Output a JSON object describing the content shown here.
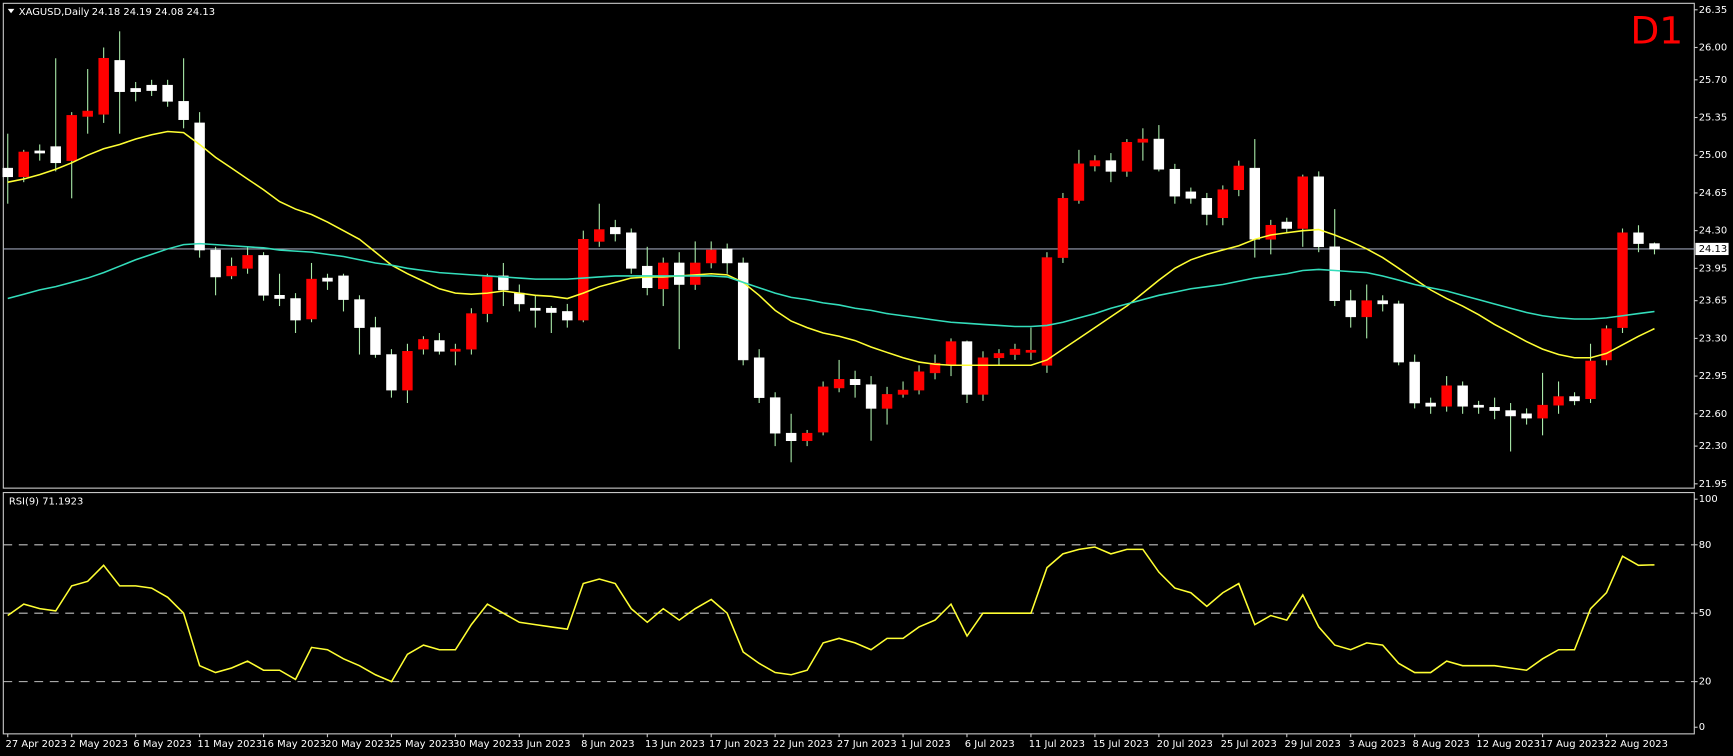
{
  "chart_data": [
    {
      "type": "candlestick",
      "title": "XAGUSD,Daily",
      "header_values": "24.18 24.19 24.08 24.13",
      "timeframe": "D1",
      "categories": [
        "27 Apr 2023",
        null,
        null,
        null,
        "2 May 2023",
        null,
        null,
        null,
        "6 May 2023",
        null,
        null,
        null,
        "11 May 2023",
        null,
        null,
        null,
        "16 May 2023",
        null,
        null,
        null,
        "20 May 2023",
        null,
        null,
        null,
        "25 May 2023",
        null,
        null,
        null,
        "30 May 2023",
        null,
        null,
        null,
        "3 Jun 2023",
        null,
        null,
        null,
        "8 Jun 2023",
        null,
        null,
        null,
        "13 Jun 2023",
        null,
        null,
        null,
        "17 Jun 2023",
        null,
        null,
        null,
        "22 Jun 2023",
        null,
        null,
        null,
        "27 Jun 2023",
        null,
        null,
        null,
        "1 Jul 2023",
        null,
        null,
        null,
        "6 Jul 2023",
        null,
        null,
        null,
        "11 Jul 2023",
        null,
        null,
        null,
        "15 Jul 2023",
        null,
        null,
        null,
        "20 Jul 2023",
        null,
        null,
        null,
        "25 Jul 2023",
        null,
        null,
        null,
        "29 Jul 2023",
        null,
        null,
        null,
        "3 Aug 2023",
        null,
        null,
        null,
        "8 Aug 2023",
        null,
        null,
        null,
        "12 Aug 2023",
        null,
        null,
        null,
        "17 Aug 2023",
        null,
        null,
        null,
        "22 Aug 2023",
        null,
        null,
        null
      ],
      "open": [
        24.88,
        24.8,
        25.04,
        25.08,
        24.95,
        25.36,
        25.38,
        25.88,
        25.62,
        25.65,
        25.65,
        25.5,
        25.3,
        24.12,
        23.88,
        23.95,
        24.07,
        23.7,
        23.67,
        23.48,
        23.86,
        23.88,
        23.66,
        23.4,
        23.15,
        22.82,
        23.2,
        23.28,
        23.18,
        23.2,
        23.53,
        23.88,
        23.72,
        23.58,
        23.58,
        23.55,
        23.47,
        24.2,
        24.33,
        24.28,
        23.97,
        23.76,
        24.0,
        23.8,
        24.0,
        24.13,
        24.0,
        23.12,
        22.75,
        22.42,
        22.35,
        22.43,
        22.84,
        22.92,
        22.87,
        22.65,
        22.78,
        22.82,
        22.98,
        23.05,
        23.27,
        22.78,
        23.12,
        23.15,
        23.17,
        23.05,
        24.05,
        24.58,
        24.9,
        24.95,
        24.85,
        25.12,
        25.15,
        24.87,
        24.66,
        24.6,
        24.42,
        24.68,
        24.88,
        24.22,
        24.38,
        24.32,
        24.8,
        24.15,
        23.65,
        23.5,
        23.65,
        23.62,
        23.08,
        22.7,
        22.67,
        22.86,
        22.68,
        22.66,
        22.63,
        22.6,
        22.56,
        22.68,
        22.76,
        22.74,
        23.1,
        23.4,
        24.28,
        24.18
      ],
      "high": [
        25.2,
        25.05,
        25.1,
        25.9,
        25.4,
        25.8,
        26.0,
        26.15,
        25.68,
        25.7,
        25.7,
        25.9,
        25.4,
        24.15,
        24.05,
        24.15,
        24.1,
        23.9,
        23.72,
        24.0,
        23.9,
        23.9,
        23.7,
        23.5,
        23.2,
        23.25,
        23.32,
        23.35,
        23.25,
        23.58,
        23.9,
        24.0,
        23.8,
        23.7,
        23.6,
        23.62,
        24.3,
        24.55,
        24.4,
        24.32,
        24.15,
        24.05,
        24.1,
        24.2,
        24.2,
        24.18,
        24.05,
        23.2,
        22.8,
        22.6,
        22.45,
        22.9,
        23.1,
        23.0,
        22.95,
        22.85,
        22.9,
        23.05,
        23.15,
        23.3,
        23.28,
        23.18,
        23.2,
        23.25,
        23.4,
        24.1,
        24.65,
        25.05,
        25.0,
        25.02,
        25.15,
        25.25,
        25.28,
        24.92,
        24.7,
        24.65,
        24.72,
        24.95,
        25.15,
        24.4,
        24.42,
        24.82,
        24.85,
        24.5,
        23.75,
        23.8,
        23.7,
        23.65,
        23.15,
        22.75,
        22.95,
        22.9,
        22.72,
        22.75,
        22.7,
        22.65,
        22.98,
        22.9,
        22.8,
        23.25,
        23.42,
        24.32,
        24.35,
        24.19
      ],
      "low": [
        24.55,
        24.75,
        24.95,
        24.85,
        24.6,
        25.2,
        25.3,
        25.2,
        25.5,
        25.55,
        25.45,
        25.25,
        24.05,
        23.7,
        23.85,
        23.9,
        23.65,
        23.6,
        23.35,
        23.45,
        23.75,
        23.55,
        23.15,
        23.12,
        22.75,
        22.7,
        23.15,
        23.15,
        23.05,
        23.15,
        23.45,
        23.6,
        23.55,
        23.4,
        23.35,
        23.4,
        23.45,
        24.15,
        24.2,
        23.9,
        23.7,
        23.6,
        23.2,
        23.75,
        23.95,
        23.9,
        23.05,
        22.7,
        22.3,
        22.15,
        22.3,
        22.4,
        22.8,
        22.75,
        22.35,
        22.5,
        22.75,
        22.78,
        22.92,
        22.95,
        22.7,
        22.72,
        23.05,
        23.1,
        23.1,
        22.98,
        24.0,
        24.55,
        24.85,
        24.75,
        24.8,
        24.95,
        24.85,
        24.55,
        24.55,
        24.35,
        24.35,
        24.62,
        24.05,
        24.08,
        24.28,
        24.15,
        24.1,
        23.6,
        23.4,
        23.3,
        23.55,
        23.05,
        22.65,
        22.6,
        22.62,
        22.6,
        22.6,
        22.55,
        22.25,
        22.5,
        22.4,
        22.6,
        22.68,
        22.7,
        23.05,
        23.35,
        24.1,
        24.08
      ],
      "close": [
        24.8,
        25.03,
        25.02,
        24.93,
        25.37,
        25.41,
        25.9,
        25.59,
        25.59,
        25.6,
        25.5,
        25.33,
        24.12,
        23.87,
        23.97,
        24.07,
        23.7,
        23.67,
        23.47,
        23.85,
        23.83,
        23.66,
        23.4,
        23.15,
        22.82,
        23.18,
        23.29,
        23.18,
        23.2,
        23.53,
        23.87,
        23.75,
        23.62,
        23.56,
        23.54,
        23.47,
        24.22,
        24.31,
        24.27,
        23.95,
        23.77,
        24.0,
        23.8,
        24.0,
        24.12,
        24.0,
        23.1,
        22.75,
        22.42,
        22.35,
        22.42,
        22.85,
        22.92,
        22.87,
        22.65,
        22.78,
        22.82,
        22.99,
        23.07,
        23.27,
        22.78,
        23.12,
        23.16,
        23.2,
        23.19,
        24.05,
        24.6,
        24.92,
        24.95,
        24.85,
        25.12,
        25.15,
        24.87,
        24.62,
        24.6,
        24.45,
        24.68,
        24.9,
        24.22,
        24.35,
        24.32,
        24.8,
        24.15,
        23.65,
        23.5,
        23.65,
        23.62,
        23.08,
        22.7,
        22.67,
        22.86,
        22.67,
        22.66,
        22.63,
        22.58,
        22.56,
        22.68,
        22.76,
        22.72,
        23.09,
        23.39,
        24.28,
        24.18,
        24.13
      ],
      "up_color": "#ff0000",
      "down_color": "#ffffff",
      "wick_color": "#a8e8a8",
      "lines": [
        {
          "color": "#ffff33",
          "values": [
            24.75,
            24.78,
            24.82,
            24.87,
            24.93,
            25.0,
            25.06,
            25.1,
            25.15,
            25.19,
            25.22,
            25.21,
            25.1,
            24.98,
            24.88,
            24.78,
            24.68,
            24.57,
            24.5,
            24.45,
            24.38,
            24.3,
            24.22,
            24.1,
            23.98,
            23.9,
            23.83,
            23.76,
            23.72,
            23.71,
            23.72,
            23.74,
            23.72,
            23.7,
            23.69,
            23.67,
            23.72,
            23.78,
            23.82,
            23.86,
            23.87,
            23.87,
            23.88,
            23.89,
            23.9,
            23.89,
            23.82,
            23.7,
            23.56,
            23.46,
            23.4,
            23.35,
            23.32,
            23.28,
            23.22,
            23.17,
            23.12,
            23.08,
            23.06,
            23.05,
            23.05,
            23.05,
            23.05,
            23.05,
            23.05,
            23.1,
            23.2,
            23.3,
            23.4,
            23.5,
            23.6,
            23.72,
            23.84,
            23.95,
            24.03,
            24.08,
            24.12,
            24.16,
            24.22,
            24.26,
            24.28,
            24.3,
            24.31,
            24.26,
            24.2,
            24.13,
            24.05,
            23.95,
            23.85,
            23.75,
            23.67,
            23.6,
            23.52,
            23.43,
            23.35,
            23.27,
            23.2,
            23.15,
            23.12,
            23.12,
            23.16,
            23.24,
            23.32,
            23.39
          ]
        },
        {
          "color": "#33ddbb",
          "values": [
            23.67,
            23.71,
            23.75,
            23.78,
            23.82,
            23.86,
            23.91,
            23.97,
            24.03,
            24.08,
            24.13,
            24.17,
            24.18,
            24.17,
            24.16,
            24.15,
            24.14,
            24.12,
            24.11,
            24.1,
            24.08,
            24.06,
            24.03,
            24.0,
            23.98,
            23.95,
            23.93,
            23.91,
            23.9,
            23.89,
            23.88,
            23.87,
            23.86,
            23.85,
            23.85,
            23.85,
            23.86,
            23.87,
            23.88,
            23.88,
            23.88,
            23.88,
            23.88,
            23.88,
            23.88,
            23.87,
            23.82,
            23.77,
            23.72,
            23.68,
            23.66,
            23.63,
            23.61,
            23.58,
            23.56,
            23.53,
            23.51,
            23.49,
            23.47,
            23.45,
            23.44,
            23.43,
            23.42,
            23.41,
            23.41,
            23.42,
            23.45,
            23.49,
            23.53,
            23.58,
            23.62,
            23.66,
            23.7,
            23.73,
            23.76,
            23.78,
            23.8,
            23.83,
            23.86,
            23.88,
            23.9,
            23.93,
            23.94,
            23.93,
            23.92,
            23.91,
            23.88,
            23.84,
            23.8,
            23.77,
            23.74,
            23.7,
            23.66,
            23.62,
            23.58,
            23.54,
            23.51,
            23.49,
            23.48,
            23.48,
            23.49,
            23.51,
            23.53,
            23.55
          ]
        }
      ],
      "price_line": {
        "value": 24.13,
        "label": "24.13"
      },
      "ylim": [
        21.91,
        26.41
      ],
      "yticks": [
        26.35,
        {
          "value": 26.0,
          "label": "26.00"
        },
        {
          "value": 25.7,
          "label": "25.70"
        },
        25.35,
        {
          "value": 25.0,
          "label": "25.00"
        },
        24.65,
        {
          "value": 24.3,
          "label": "24.30"
        },
        23.95,
        23.65,
        {
          "value": 23.3,
          "label": "23.30"
        },
        22.95,
        {
          "value": 22.6,
          "label": "22.60"
        },
        {
          "value": 22.3,
          "label": "22.30"
        },
        21.95
      ]
    },
    {
      "type": "line",
      "title": "RSI(9) 71.1923",
      "color": "#ffff33",
      "values": [
        49,
        54,
        52,
        51,
        62,
        64,
        71,
        62,
        62,
        61,
        57,
        50,
        27,
        24,
        26,
        29,
        25,
        25,
        21,
        35,
        34,
        30,
        27,
        23,
        20,
        32,
        36,
        34,
        34,
        45,
        54,
        50,
        46,
        45,
        44,
        43,
        63,
        65,
        63,
        52,
        46,
        52,
        47,
        52,
        56,
        50,
        33,
        28,
        24,
        23,
        25,
        37,
        39,
        37,
        34,
        39,
        39,
        44,
        47,
        54,
        40,
        50,
        50,
        50,
        50,
        70,
        76,
        78,
        79,
        76,
        78,
        78,
        68,
        61,
        59,
        53,
        59,
        63,
        45,
        49,
        47,
        58,
        44,
        36,
        34,
        37,
        36,
        28,
        24,
        24,
        29,
        27,
        27,
        27,
        26,
        25,
        30,
        34,
        34,
        52,
        59,
        75,
        71,
        71.1923
      ],
      "ylim": [
        -2.9,
        102.9
      ],
      "yticks": [
        100,
        80,
        50,
        20,
        0
      ],
      "grid": "dashed"
    }
  ]
}
